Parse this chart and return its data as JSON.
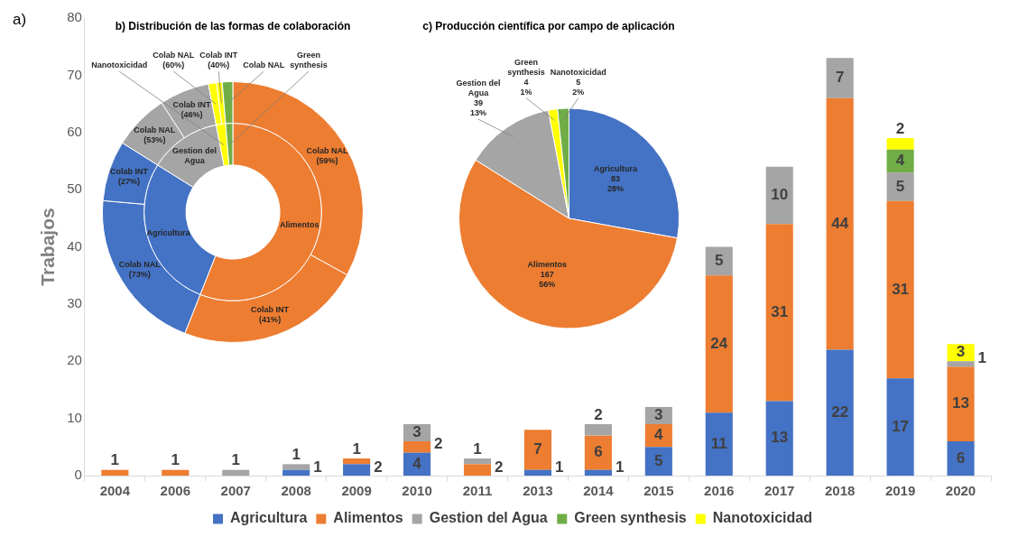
{
  "chart_data": [
    {
      "type": "bar",
      "stacked": true,
      "annotations": [
        "a)"
      ],
      "ylabel": "Trabajos",
      "categories": [
        "2004",
        "2006",
        "2007",
        "2008",
        "2009",
        "2010",
        "2011",
        "2013",
        "2014",
        "2015",
        "2016",
        "2017",
        "2018",
        "2019",
        "2020"
      ],
      "series": [
        {
          "name": "Agricultura",
          "color": "#4472c4",
          "values": [
            null,
            null,
            null,
            1,
            2,
            4,
            null,
            1,
            1,
            5,
            11,
            13,
            22,
            17,
            6
          ]
        },
        {
          "name": "Alimentos",
          "color": "#ed7d31",
          "values": [
            1,
            1,
            null,
            null,
            1,
            2,
            2,
            7,
            6,
            4,
            24,
            31,
            44,
            31,
            13
          ]
        },
        {
          "name": "Gestion del Agua",
          "color": "#a5a5a5",
          "values": [
            null,
            null,
            1,
            1,
            null,
            3,
            1,
            null,
            2,
            3,
            5,
            10,
            7,
            5,
            1
          ]
        },
        {
          "name": "Green synthesis",
          "color": "#70ad47",
          "values": [
            null,
            null,
            null,
            null,
            null,
            null,
            null,
            null,
            null,
            null,
            null,
            null,
            null,
            4,
            null
          ]
        },
        {
          "name": "Nanotoxicidad",
          "color": "#ffff00",
          "values": [
            null,
            null,
            null,
            null,
            null,
            null,
            null,
            null,
            null,
            null,
            null,
            null,
            null,
            2,
            3
          ]
        }
      ],
      "ylim": [
        0,
        80
      ],
      "yticks": [
        0,
        10,
        20,
        30,
        40,
        50,
        60,
        70,
        80
      ],
      "legend": "bottom",
      "data_labels": true
    },
    {
      "type": "donut",
      "title": "b) Distribución de las formas de colaboración",
      "categories": [
        "Colab NAL (59%)",
        "Colab INT (41%)",
        "Colab NAL (73%)",
        "Colab INT (27%)",
        "Colab NAL (53%)",
        "Colab INT (46%)",
        "Colab NAL (60%)",
        "Colab INT (40%)",
        "Colab NAL"
      ],
      "values": [
        33.0,
        23.0,
        20.4,
        7.5,
        6.9,
        6.2,
        1.0,
        0.7,
        1.3
      ],
      "colors": [
        "#ed7d31",
        "#ed7d31",
        "#4472c4",
        "#4472c4",
        "#a5a5a5",
        "#a5a5a5",
        "#ffff00",
        "#ffff00",
        "#70ad47"
      ]
    },
    {
      "type": "donut",
      "categories": [
        "Alimentos",
        "Agricultura",
        "Gestion del Agua",
        "Nanotoxicidad",
        "Green synthesis"
      ],
      "values": [
        56.0,
        27.9,
        13.1,
        1.7,
        1.3
      ],
      "colors": [
        "#ed7d31",
        "#4472c4",
        "#a5a5a5",
        "#ffff00",
        "#70ad47"
      ]
    },
    {
      "type": "pie",
      "title": "c) Producción científica por campo de aplicación",
      "categories": [
        "Agricultura",
        "Alimentos",
        "Gestion del Agua",
        "Green synthesis",
        "Nanotoxicidad"
      ],
      "values": [
        83,
        167,
        39,
        4,
        5
      ],
      "colors": [
        "#4472c4",
        "#ed7d31",
        "#a5a5a5",
        "#ffff00",
        "#70ad47"
      ],
      "value_labels": [
        "83\n28%",
        "167\n56%",
        "39\n13%",
        "4\n1%",
        "5\n2%"
      ]
    }
  ]
}
